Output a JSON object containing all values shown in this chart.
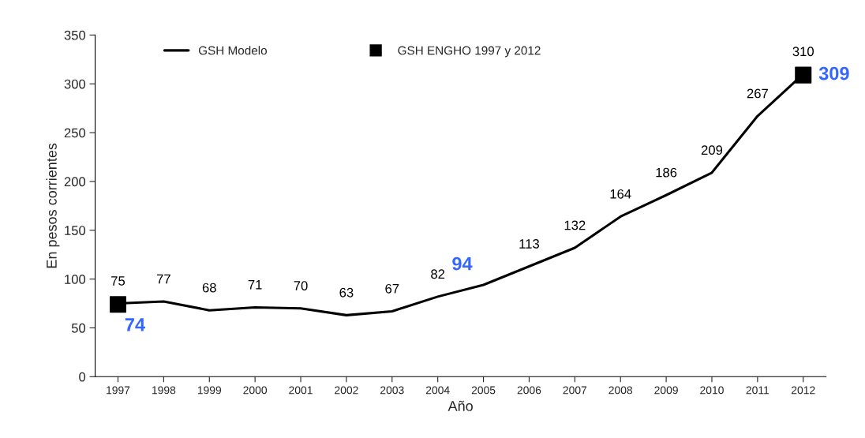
{
  "chart_data": {
    "type": "line",
    "xlabel": "Año",
    "ylabel": "En pesos corrientes",
    "categories": [
      "1997",
      "1998",
      "1999",
      "2000",
      "2001",
      "2002",
      "2003",
      "2004",
      "2005",
      "2006",
      "2007",
      "2008",
      "2009",
      "2010",
      "2011",
      "2012"
    ],
    "series": [
      {
        "name": "GSH Modelo",
        "color": "#000000",
        "values": [
          75,
          77,
          68,
          71,
          70,
          63,
          67,
          82,
          94,
          113,
          132,
          164,
          186,
          209,
          267,
          310
        ],
        "value_labels": [
          "75",
          "77",
          "68",
          "71",
          "70",
          "63",
          "67",
          "82",
          null,
          "113",
          "132",
          "164",
          "186",
          "209",
          "267",
          "310"
        ]
      },
      {
        "name": "GSH ENGHO 1997 y 2012",
        "type": "scatter",
        "color": "#000000",
        "marker": "square",
        "values": [
          74,
          null,
          null,
          null,
          null,
          null,
          null,
          null,
          null,
          null,
          null,
          null,
          null,
          null,
          null,
          309
        ],
        "value_labels": [
          "74",
          null,
          null,
          null,
          null,
          null,
          null,
          null,
          null,
          null,
          null,
          null,
          null,
          null,
          null,
          "309"
        ]
      }
    ],
    "annotations": [
      {
        "text": "94",
        "x": "2005",
        "y": 94
      }
    ],
    "ylim": [
      0,
      350
    ],
    "yticks": [
      0,
      50,
      100,
      150,
      200,
      250,
      300,
      350
    ],
    "grid": false,
    "legend": "top left"
  }
}
